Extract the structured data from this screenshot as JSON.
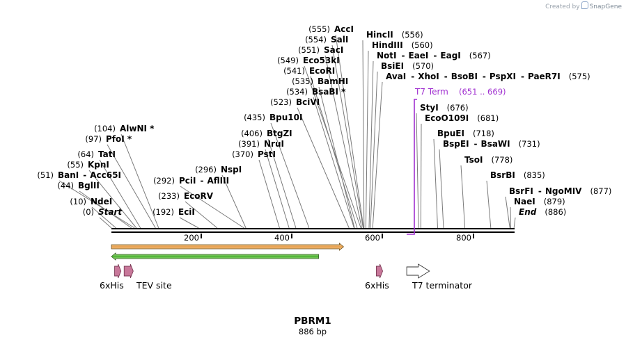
{
  "credit": {
    "prefix": "Created by",
    "brand": "SnapGene"
  },
  "map": {
    "name": "PBRM1",
    "length_label": "886 bp",
    "length_bp": 886
  },
  "axis": {
    "ticks": [
      "200",
      "400",
      "600",
      "800"
    ]
  },
  "colors": {
    "term": "#a030d0",
    "orange": "#e8a050",
    "green": "#48b030",
    "pink": "#c8789a"
  },
  "sites": [
    {
      "pos": "(0)",
      "name": "Start",
      "italic": true
    },
    {
      "pos": "(10)",
      "name": "NdeI"
    },
    {
      "pos": "(44)",
      "name": "BglII"
    },
    {
      "pos": "(51)",
      "name": "BanI",
      "extra": "Acc65I"
    },
    {
      "pos": "(55)",
      "name": "KpnI"
    },
    {
      "pos": "(64)",
      "name": "TatI"
    },
    {
      "pos": "(97)",
      "name": "PfoI *"
    },
    {
      "pos": "(104)",
      "name": "AlwNI *"
    },
    {
      "pos": "(192)",
      "name": "EciI"
    },
    {
      "pos": "(233)",
      "name": "EcoRV"
    },
    {
      "pos": "(292)",
      "name": "PciI",
      "extra": "AflIII"
    },
    {
      "pos": "(296)",
      "name": "NspI"
    },
    {
      "pos": "(370)",
      "name": "PstI"
    },
    {
      "pos": "(391)",
      "name": "NruI"
    },
    {
      "pos": "(406)",
      "name": "BtgZI"
    },
    {
      "pos": "(435)",
      "name": "Bpu10I"
    },
    {
      "pos": "(523)",
      "name": "BciVI"
    },
    {
      "pos": "(534)",
      "name": "BsaBI *"
    },
    {
      "pos": "(535)",
      "name": "BamHI"
    },
    {
      "pos": "(541)",
      "name": "EcoRI"
    },
    {
      "pos": "(549)",
      "name": "Eco53kI"
    },
    {
      "pos": "(551)",
      "name": "SacI"
    },
    {
      "pos": "(554)",
      "name": "SalI"
    },
    {
      "pos": "(555)",
      "name": "AccI"
    },
    {
      "pos": "(556)",
      "name": "HincII"
    },
    {
      "pos": "(560)",
      "name": "HindIII"
    },
    {
      "pos": "(567)",
      "name": "NotI",
      "extra": "EaeI",
      "extra2": "EagI"
    },
    {
      "pos": "(570)",
      "name": "BsiEI"
    },
    {
      "pos": "(575)",
      "name": "AvaI",
      "extra": "XhoI",
      "extra2": "BsoBI",
      "extra3": "PspXI",
      "extra4": "PaeR7I"
    },
    {
      "pos": "(676)",
      "name": "StyI"
    },
    {
      "pos": "(681)",
      "name": "EcoO109I"
    },
    {
      "pos": "(718)",
      "name": "BpuEI"
    },
    {
      "pos": "(731)",
      "name": "BspEI",
      "extra": "BsaWI"
    },
    {
      "pos": "(778)",
      "name": "TsoI"
    },
    {
      "pos": "(835)",
      "name": "BsrBI"
    },
    {
      "pos": "(877)",
      "name": "BsrFI",
      "extra": "NgoMIV"
    },
    {
      "pos": "(879)",
      "name": "NaeI"
    },
    {
      "pos": "(886)",
      "name": "End",
      "italic": true
    }
  ],
  "terminator_label": {
    "name": "T7 Term",
    "range": "(651 .. 669)"
  },
  "features": [
    {
      "label": "6xHis",
      "start": 7,
      "end": 21
    },
    {
      "label": "TEV site",
      "start": 28,
      "end": 48
    },
    {
      "label": "6xHis",
      "start": 583,
      "end": 597
    },
    {
      "label": "T7 terminator",
      "start": 650,
      "end": 700
    }
  ],
  "ranges": [
    {
      "name": "orange-range",
      "start": 0,
      "end": 511
    },
    {
      "name": "green-range",
      "start": 0,
      "end": 456
    }
  ]
}
